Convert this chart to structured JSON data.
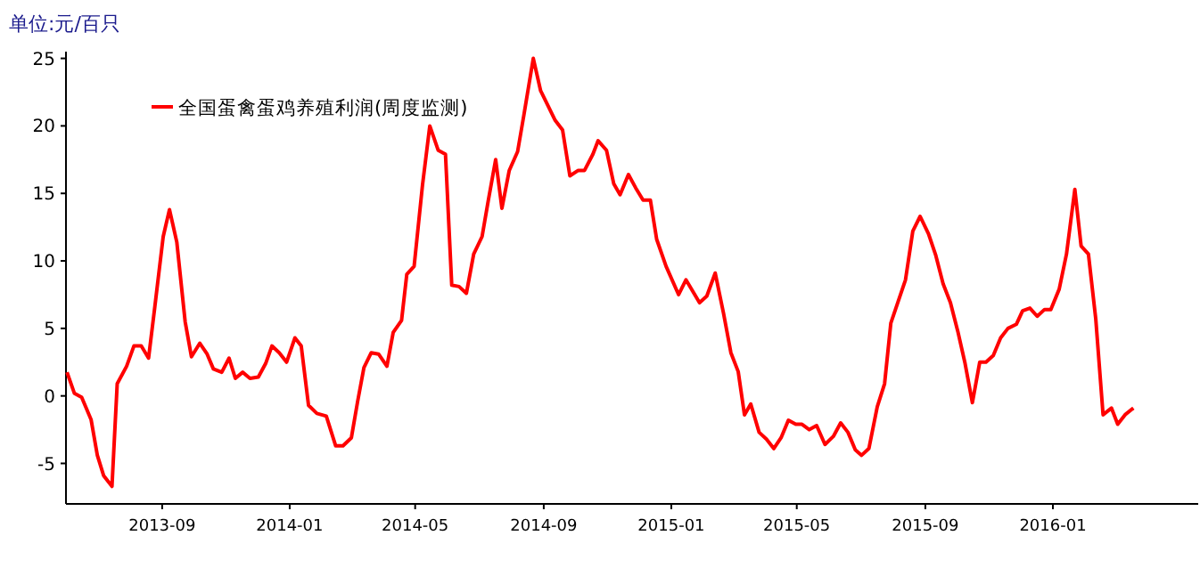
{
  "chart_data": {
    "type": "line",
    "ylabel": "单位:元/百只",
    "x": [
      "2013-06-02",
      "2013-06-09",
      "2013-06-16",
      "2013-06-25",
      "2013-07-01",
      "2013-07-07",
      "2013-07-15",
      "2013-07-20",
      "2013-07-29",
      "2013-08-05",
      "2013-08-12",
      "2013-08-19",
      "2013-08-25",
      "2013-09-02",
      "2013-09-08",
      "2013-09-15",
      "2013-09-23",
      "2013-09-29",
      "2013-10-07",
      "2013-10-14",
      "2013-10-20",
      "2013-10-28",
      "2013-11-04",
      "2013-11-10",
      "2013-11-17",
      "2013-11-24",
      "2013-12-02",
      "2013-12-09",
      "2013-12-15",
      "2013-12-22",
      "2013-12-29",
      "2014-01-06",
      "2014-01-12",
      "2014-01-19",
      "2014-01-27",
      "2014-02-05",
      "2014-02-14",
      "2014-02-21",
      "2014-03-01",
      "2014-03-07",
      "2014-03-13",
      "2014-03-20",
      "2014-03-27",
      "2014-04-04",
      "2014-04-10",
      "2014-04-18",
      "2014-04-23",
      "2014-04-30",
      "2014-05-08",
      "2014-05-15",
      "2014-05-23",
      "2014-05-30",
      "2014-06-05",
      "2014-06-12",
      "2014-06-19",
      "2014-06-26",
      "2014-07-04",
      "2014-07-10",
      "2014-07-17",
      "2014-07-23",
      "2014-07-30",
      "2014-08-07",
      "2014-08-13",
      "2014-08-22",
      "2014-08-29",
      "2014-09-05",
      "2014-09-12",
      "2014-09-19",
      "2014-09-26",
      "2014-10-04",
      "2014-10-10",
      "2014-10-18",
      "2014-10-23",
      "2014-10-31",
      "2014-11-07",
      "2014-11-13",
      "2014-11-21",
      "2014-11-28",
      "2014-12-05",
      "2014-12-12",
      "2014-12-18",
      "2014-12-27",
      "2015-01-08",
      "2015-01-15",
      "2015-01-28",
      "2015-02-04",
      "2015-02-12",
      "2015-02-20",
      "2015-02-27",
      "2015-03-06",
      "2015-03-12",
      "2015-03-18",
      "2015-03-26",
      "2015-04-02",
      "2015-04-09",
      "2015-04-16",
      "2015-04-23",
      "2015-04-30",
      "2015-05-06",
      "2015-05-13",
      "2015-05-20",
      "2015-05-28",
      "2015-06-05",
      "2015-06-12",
      "2015-06-19",
      "2015-06-26",
      "2015-07-02",
      "2015-07-09",
      "2015-07-17",
      "2015-07-24",
      "2015-07-30",
      "2015-08-06",
      "2015-08-13",
      "2015-08-20",
      "2015-08-27",
      "2015-09-04",
      "2015-09-11",
      "2015-09-18",
      "2015-09-25",
      "2015-10-02",
      "2015-10-09",
      "2015-10-16",
      "2015-10-23",
      "2015-10-29",
      "2015-11-05",
      "2015-11-12",
      "2015-11-19",
      "2015-11-27",
      "2015-12-03",
      "2015-12-10",
      "2015-12-17",
      "2015-12-24",
      "2015-12-30",
      "2016-01-07",
      "2016-01-14",
      "2016-01-22",
      "2016-01-28",
      "2016-02-04",
      "2016-02-11",
      "2016-02-18",
      "2016-02-26",
      "2016-03-03",
      "2016-03-10",
      "2016-03-18"
    ],
    "series": [
      {
        "name": "全国蛋禽蛋鸡养殖利润(周度监测)",
        "color": "#ff0000",
        "values": [
          1.75,
          0.2,
          -0.1,
          -1.75,
          -4.4,
          -5.9,
          -6.7,
          0.9,
          2.2,
          3.7,
          3.7,
          2.8,
          6.6,
          11.8,
          13.8,
          11.4,
          5.5,
          2.9,
          3.9,
          3.1,
          2.0,
          1.75,
          2.8,
          1.3,
          1.75,
          1.3,
          1.4,
          2.4,
          3.7,
          3.2,
          2.5,
          4.3,
          3.7,
          -0.7,
          -1.3,
          -1.5,
          -3.7,
          -3.7,
          -3.1,
          -0.4,
          2.1,
          3.2,
          3.1,
          2.2,
          4.7,
          5.6,
          9.0,
          9.6,
          15.6,
          20.0,
          18.2,
          17.9,
          8.2,
          8.1,
          7.6,
          10.5,
          11.8,
          14.5,
          17.5,
          13.9,
          16.7,
          18.1,
          20.8,
          25.0,
          22.6,
          21.5,
          20.4,
          19.7,
          16.3,
          16.7,
          16.7,
          17.9,
          18.9,
          18.2,
          15.7,
          14.9,
          16.4,
          15.4,
          14.5,
          14.5,
          11.6,
          9.6,
          7.5,
          8.6,
          6.9,
          7.4,
          9.1,
          6.1,
          3.2,
          1.8,
          -1.4,
          -0.6,
          -2.7,
          -3.2,
          -3.9,
          -3.1,
          -1.8,
          -2.1,
          -2.1,
          -2.5,
          -2.2,
          -3.6,
          -3.0,
          -2.0,
          -2.7,
          -4.0,
          -4.4,
          -3.9,
          -0.8,
          0.9,
          5.4,
          7.0,
          8.6,
          12.2,
          13.3,
          12.0,
          10.4,
          8.3,
          6.9,
          4.8,
          2.4,
          -0.5,
          2.5,
          2.5,
          3.0,
          4.3,
          5.0,
          5.3,
          6.3,
          6.5,
          5.9,
          6.4,
          6.4,
          7.9,
          10.5,
          15.3,
          11.1,
          10.5,
          5.7,
          -1.4,
          -0.9,
          -2.1,
          -1.4,
          -0.9
        ]
      }
    ],
    "xlim": [
      "2013-06-01",
      "2016-05-19"
    ],
    "ylim": [
      -8,
      25.5
    ],
    "xticks": [
      {
        "value": "2013-09-01",
        "label": "2013-09"
      },
      {
        "value": "2014-01-01",
        "label": "2014-01"
      },
      {
        "value": "2014-05-01",
        "label": "2014-05"
      },
      {
        "value": "2014-09-01",
        "label": "2014-09"
      },
      {
        "value": "2015-01-01",
        "label": "2015-01"
      },
      {
        "value": "2015-05-01",
        "label": "2015-05"
      },
      {
        "value": "2015-09-01",
        "label": "2015-09"
      },
      {
        "value": "2016-01-01",
        "label": "2016-01"
      }
    ],
    "yticks": [
      -5,
      0,
      5,
      10,
      15,
      20,
      25
    ],
    "legend": "top left"
  }
}
